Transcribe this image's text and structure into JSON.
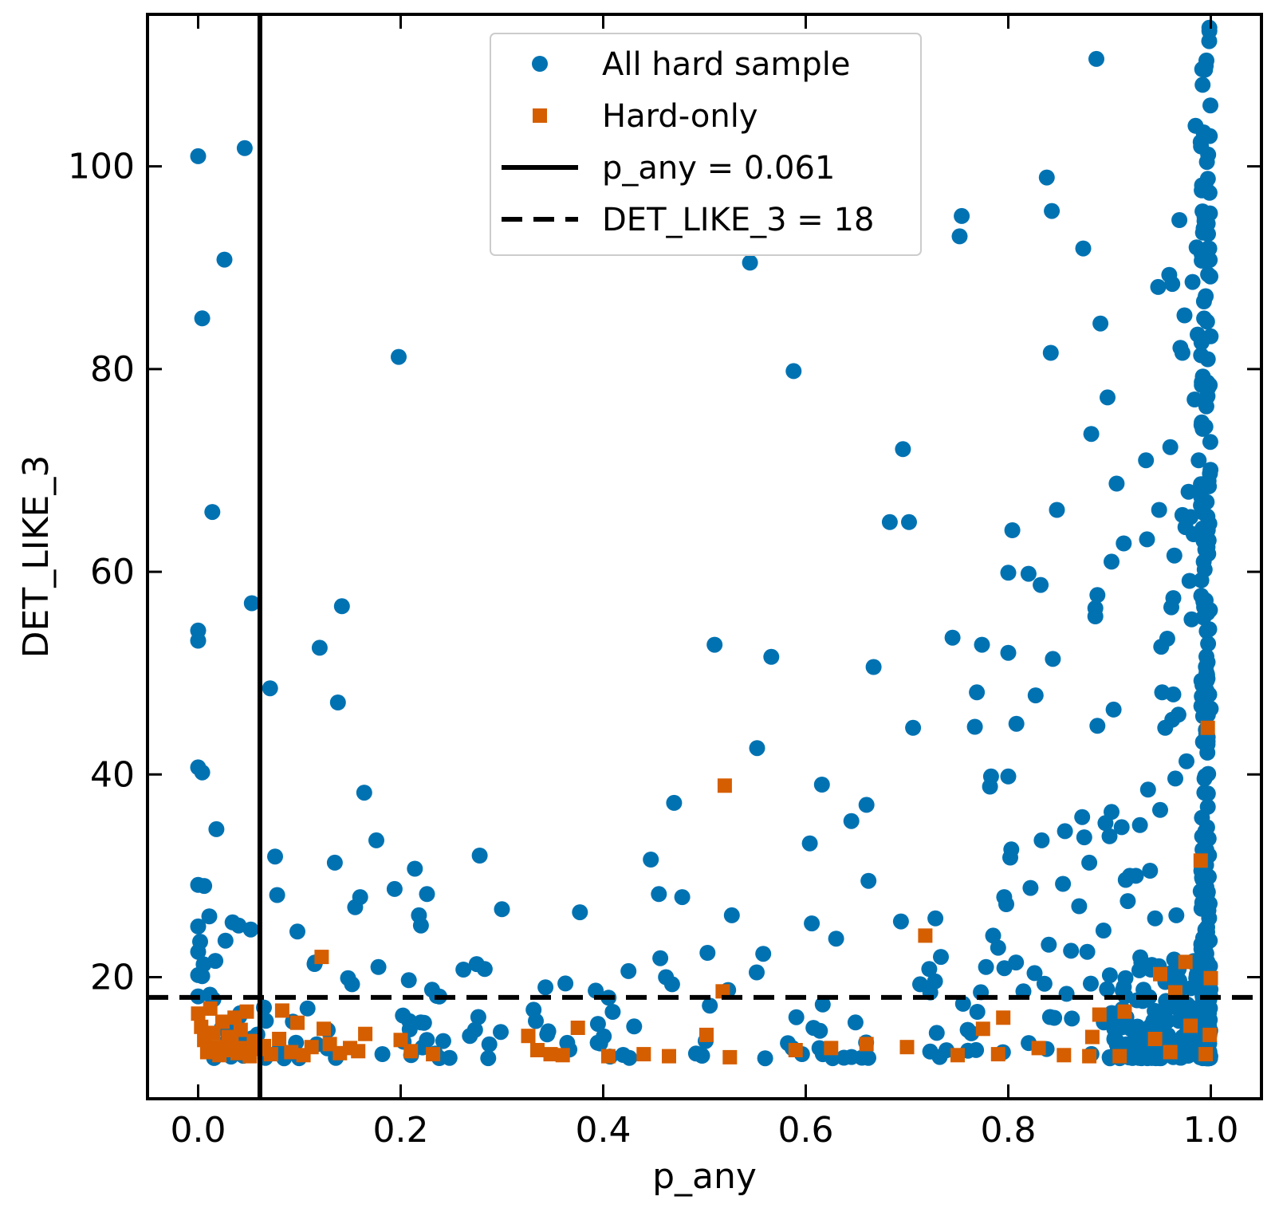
{
  "chart_data": {
    "type": "scatter",
    "title": "",
    "xlabel": "p_any",
    "ylabel": "DET_LIKE_3",
    "xlim": [
      -0.05,
      1.05
    ],
    "ylim": [
      8,
      115
    ],
    "x_ticks": [
      0.0,
      0.2,
      0.4,
      0.6,
      0.8,
      1.0
    ],
    "x_tick_labels": [
      "0.0",
      "0.2",
      "0.4",
      "0.6",
      "0.8",
      "1.0"
    ],
    "y_ticks": [
      20,
      40,
      60,
      80,
      100
    ],
    "y_tick_labels": [
      "20",
      "40",
      "60",
      "80",
      "100"
    ],
    "grid": false,
    "legend_position": "top-center",
    "colors": {
      "all": "#0072b2",
      "hard": "#d55e00",
      "lines": "#000000"
    },
    "reference_lines": [
      {
        "orientation": "vertical",
        "value": 0.061,
        "style": "solid",
        "label": "p_any = 0.061"
      },
      {
        "orientation": "horizontal",
        "value": 18,
        "style": "dashed",
        "label": "DET_LIKE_3 = 18"
      }
    ],
    "series": [
      {
        "name": "All hard sample",
        "marker": "circle",
        "points": [
          [
            0.0,
            101
          ],
          [
            0.046,
            101.8
          ],
          [
            0.026,
            90.8
          ],
          [
            0.004,
            85
          ],
          [
            0.014,
            65.9
          ],
          [
            0.053,
            56.9
          ],
          [
            0.0,
            54.2
          ],
          [
            0.0,
            53.2
          ],
          [
            0.0,
            40.7
          ],
          [
            0.004,
            40.2
          ],
          [
            0.018,
            34.6
          ],
          [
            0.0,
            29.1
          ],
          [
            0.006,
            29
          ],
          [
            0.011,
            26
          ],
          [
            0.034,
            25.4
          ],
          [
            0.04,
            25.1
          ],
          [
            0.0,
            25
          ],
          [
            0.052,
            24.7
          ],
          [
            0.027,
            23.6
          ],
          [
            0.002,
            23.5
          ],
          [
            0.0,
            22.5
          ],
          [
            0.017,
            21.6
          ],
          [
            0.0,
            20.2
          ],
          [
            0.004,
            20.1
          ],
          [
            0.0,
            18.1
          ],
          [
            0.015,
            17.8
          ],
          [
            0.065,
            17.0
          ],
          [
            0.071,
            48.5
          ],
          [
            0.076,
            31.9
          ],
          [
            0.078,
            28.1
          ],
          [
            0.098,
            24.5
          ],
          [
            0.115,
            21.3
          ],
          [
            0.12,
            52.5
          ],
          [
            0.135,
            31.3
          ],
          [
            0.138,
            47.1
          ],
          [
            0.142,
            56.6
          ],
          [
            0.148,
            19.9
          ],
          [
            0.152,
            19.3
          ],
          [
            0.155,
            26.9
          ],
          [
            0.16,
            27.9
          ],
          [
            0.164,
            38.2
          ],
          [
            0.176,
            33.5
          ],
          [
            0.178,
            21
          ],
          [
            0.194,
            28.7
          ],
          [
            0.198,
            81.2
          ],
          [
            0.208,
            19.7
          ],
          [
            0.214,
            30.7
          ],
          [
            0.218,
            26.1
          ],
          [
            0.22,
            25.1
          ],
          [
            0.226,
            28.2
          ],
          [
            0.278,
            32
          ],
          [
            0.283,
            20.8
          ],
          [
            0.3,
            26.7
          ],
          [
            0.343,
            19
          ],
          [
            0.377,
            26.4
          ],
          [
            0.425,
            20.6
          ],
          [
            0.447,
            31.6
          ],
          [
            0.455,
            28.2
          ],
          [
            0.462,
            20
          ],
          [
            0.468,
            19.3
          ],
          [
            0.47,
            37.2
          ],
          [
            0.478,
            27.9
          ],
          [
            0.51,
            52.8
          ],
          [
            0.503,
            22.4
          ],
          [
            0.527,
            26.1
          ],
          [
            0.545,
            90.5
          ],
          [
            0.552,
            42.6
          ],
          [
            0.558,
            22.3
          ],
          [
            0.566,
            51.6
          ],
          [
            0.588,
            79.8
          ],
          [
            0.604,
            33.2
          ],
          [
            0.606,
            25.3
          ],
          [
            0.616,
            39
          ],
          [
            0.63,
            23.8
          ],
          [
            0.645,
            35.4
          ],
          [
            0.66,
            37
          ],
          [
            0.662,
            29.5
          ],
          [
            0.667,
            50.6
          ],
          [
            0.683,
            64.9
          ],
          [
            0.694,
            25.5
          ],
          [
            0.696,
            72.1
          ],
          [
            0.702,
            64.9
          ],
          [
            0.706,
            44.6
          ],
          [
            0.713,
            19.3
          ],
          [
            0.722,
            20.8
          ],
          [
            0.728,
            25.8
          ],
          [
            0.745,
            53.5
          ],
          [
            0.752,
            93.1
          ],
          [
            0.754,
            95.1
          ],
          [
            0.767,
            44.7
          ],
          [
            0.769,
            48.1
          ],
          [
            0.774,
            52.8
          ],
          [
            0.778,
            21
          ],
          [
            0.782,
            38.8
          ],
          [
            0.783,
            39.8
          ],
          [
            0.785,
            24.1
          ],
          [
            0.79,
            22.9
          ],
          [
            0.796,
            27.9
          ],
          [
            0.798,
            27.2
          ],
          [
            0.8,
            39.8
          ],
          [
            0.8,
            59.9
          ],
          [
            0.8,
            52
          ],
          [
            0.802,
            31.8
          ],
          [
            0.803,
            32.6
          ],
          [
            0.804,
            64.1
          ],
          [
            0.808,
            45
          ],
          [
            0.815,
            18.6
          ],
          [
            0.82,
            59.8
          ],
          [
            0.822,
            28.8
          ],
          [
            0.826,
            20.4
          ],
          [
            0.827,
            47.8
          ],
          [
            0.832,
            58.7
          ],
          [
            0.833,
            33.5
          ],
          [
            0.838,
            98.9
          ],
          [
            0.84,
            23.2
          ],
          [
            0.842,
            81.6
          ],
          [
            0.843,
            95.6
          ],
          [
            0.844,
            51.4
          ],
          [
            0.848,
            66.1
          ],
          [
            0.854,
            29.2
          ],
          [
            0.856,
            34.4
          ],
          [
            0.862,
            22.6
          ],
          [
            0.87,
            27
          ],
          [
            0.873,
            35.8
          ],
          [
            0.874,
            91.9
          ],
          [
            0.875,
            33.8
          ],
          [
            0.878,
            22.5
          ],
          [
            0.88,
            31.3
          ],
          [
            0.882,
            73.6
          ],
          [
            0.886,
            55.6
          ],
          [
            0.886,
            56.4
          ],
          [
            0.887,
            110.6
          ],
          [
            0.888,
            57.7
          ],
          [
            0.888,
            44.8
          ],
          [
            0.891,
            84.5
          ],
          [
            0.894,
            24.6
          ],
          [
            0.896,
            35.2
          ],
          [
            0.898,
            77.2
          ],
          [
            0.9,
            33.9
          ],
          [
            0.902,
            61
          ],
          [
            0.902,
            36.3
          ],
          [
            0.904,
            46.4
          ],
          [
            0.907,
            68.7
          ],
          [
            0.912,
            34.8
          ],
          [
            0.914,
            62.8
          ],
          [
            0.916,
            29.6
          ],
          [
            0.918,
            27.5
          ],
          [
            0.92,
            30
          ],
          [
            0.926,
            30
          ],
          [
            0.93,
            35
          ],
          [
            0.936,
            71
          ],
          [
            0.937,
            63.2
          ],
          [
            0.938,
            38.5
          ],
          [
            0.94,
            30.5
          ],
          [
            0.945,
            25.8
          ],
          [
            0.948,
            88.1
          ],
          [
            0.949,
            66.1
          ],
          [
            0.95,
            36.5
          ],
          [
            0.951,
            52.6
          ],
          [
            0.952,
            48.1
          ],
          [
            0.955,
            44.6
          ],
          [
            0.957,
            53.4
          ],
          [
            0.959,
            89.3
          ],
          [
            0.96,
            72.3
          ],
          [
            0.961,
            56.5
          ],
          [
            0.962,
            88.4
          ],
          [
            0.962,
            45.4
          ],
          [
            0.963,
            47.9
          ],
          [
            0.963,
            57.4
          ],
          [
            0.964,
            61.6
          ],
          [
            0.965,
            39.6
          ],
          [
            0.966,
            26.1
          ],
          [
            0.968,
            45.9
          ],
          [
            0.969,
            94.7
          ],
          [
            0.97,
            82.1
          ],
          [
            0.972,
            81.6
          ],
          [
            0.972,
            65.6
          ],
          [
            0.974,
            85.3
          ],
          [
            0.975,
            64.4
          ],
          [
            0.976,
            41.3
          ],
          [
            0.978,
            67.9
          ],
          [
            0.979,
            59.1
          ],
          [
            0.98,
            65.4
          ],
          [
            0.981,
            55.3
          ],
          [
            0.982,
            88.6
          ],
          [
            0.983,
            63.7
          ],
          [
            0.984,
            77
          ],
          [
            0.985,
            104
          ],
          [
            0.986,
            92
          ],
          [
            0.987,
            83.4
          ],
          [
            0.988,
            71
          ],
          [
            0.99,
            102.4
          ],
          [
            0.991,
            90.7
          ],
          [
            0.992,
            74.1
          ],
          [
            0.993,
            61
          ],
          [
            0.994,
            43.4
          ],
          [
            0.995,
            56.2
          ],
          [
            0.996,
            49.3
          ],
          [
            0.997,
            36.8
          ],
          [
            0.998,
            29.9
          ],
          [
            0.999,
            23.6
          ]
        ]
      },
      {
        "name": "Hard-only",
        "marker": "square",
        "points": [
          [
            0.0,
            16.4
          ],
          [
            0.003,
            15.1
          ],
          [
            0.006,
            13.8
          ],
          [
            0.009,
            12.6
          ],
          [
            0.012,
            16.9
          ],
          [
            0.015,
            14.5
          ],
          [
            0.018,
            13.1
          ],
          [
            0.021,
            12.3
          ],
          [
            0.024,
            15.6
          ],
          [
            0.027,
            12.8
          ],
          [
            0.03,
            14.1
          ],
          [
            0.033,
            13.4
          ],
          [
            0.036,
            16.0
          ],
          [
            0.039,
            12.5
          ],
          [
            0.042,
            14.8
          ],
          [
            0.045,
            13.0
          ],
          [
            0.048,
            16.6
          ],
          [
            0.051,
            12.2
          ],
          [
            0.055,
            13.7
          ],
          [
            0.058,
            12.9
          ],
          [
            0.065,
            13.2
          ],
          [
            0.072,
            12.4
          ],
          [
            0.08,
            13.9
          ],
          [
            0.083,
            16.7
          ],
          [
            0.092,
            12.6
          ],
          [
            0.098,
            15.5
          ],
          [
            0.104,
            12.3
          ],
          [
            0.112,
            13.1
          ],
          [
            0.122,
            22.0
          ],
          [
            0.124,
            14.9
          ],
          [
            0.13,
            13.4
          ],
          [
            0.14,
            12.5
          ],
          [
            0.15,
            13.0
          ],
          [
            0.158,
            12.7
          ],
          [
            0.165,
            14.4
          ],
          [
            0.2,
            13.8
          ],
          [
            0.21,
            12.7
          ],
          [
            0.232,
            12.4
          ],
          [
            0.326,
            14.2
          ],
          [
            0.335,
            12.8
          ],
          [
            0.348,
            12.4
          ],
          [
            0.36,
            12.3
          ],
          [
            0.375,
            15.0
          ],
          [
            0.405,
            12.2
          ],
          [
            0.44,
            12.4
          ],
          [
            0.465,
            12.2
          ],
          [
            0.502,
            14.3
          ],
          [
            0.518,
            18.6
          ],
          [
            0.52,
            38.9
          ],
          [
            0.525,
            12.1
          ],
          [
            0.59,
            12.8
          ],
          [
            0.625,
            13.0
          ],
          [
            0.66,
            13.4
          ],
          [
            0.7,
            13.1
          ],
          [
            0.718,
            24.1
          ],
          [
            0.75,
            12.3
          ],
          [
            0.775,
            14.9
          ],
          [
            0.79,
            12.4
          ],
          [
            0.795,
            16.0
          ],
          [
            0.83,
            13.0
          ],
          [
            0.855,
            12.3
          ],
          [
            0.88,
            12.2
          ],
          [
            0.883,
            14.1
          ],
          [
            0.89,
            16.3
          ],
          [
            0.91,
            12.2
          ],
          [
            0.915,
            16.6
          ],
          [
            0.945,
            13.9
          ],
          [
            0.95,
            20.3
          ],
          [
            0.96,
            12.6
          ],
          [
            0.965,
            18.5
          ],
          [
            0.975,
            21.5
          ],
          [
            0.98,
            15.2
          ],
          [
            0.99,
            31.5
          ],
          [
            0.997,
            44.6
          ],
          [
            1.0,
            19.9
          ],
          [
            0.999,
            14.3
          ],
          [
            0.995,
            12.4
          ]
        ]
      }
    ]
  }
}
